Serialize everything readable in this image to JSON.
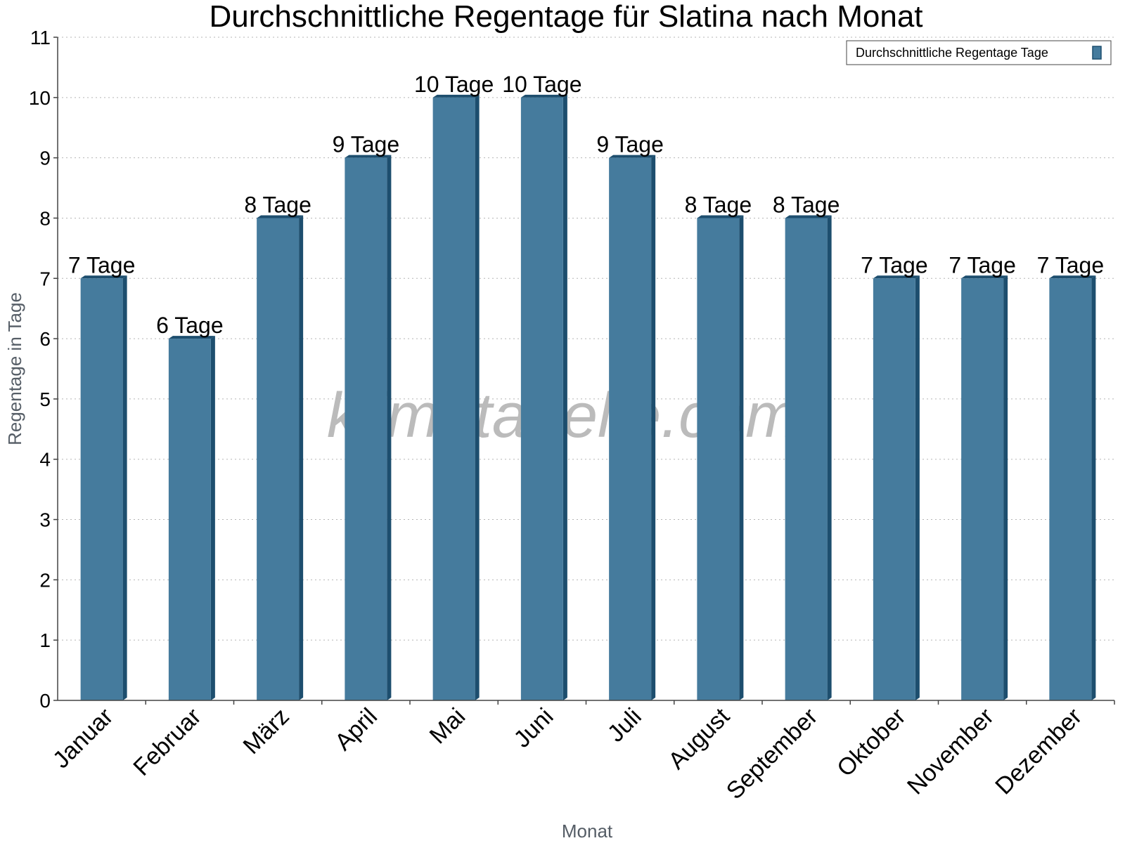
{
  "chart_data": {
    "type": "bar",
    "title": "Durchschnittliche Regentage für Slatina nach Monat",
    "xlabel": "Monat",
    "ylabel": "Regentage in Tage",
    "ylim": [
      0,
      11
    ],
    "yticks": [
      0,
      1,
      2,
      3,
      4,
      5,
      6,
      7,
      8,
      9,
      10,
      11
    ],
    "grid": true,
    "legend_position": "top-right",
    "categories": [
      "Januar",
      "Februar",
      "März",
      "April",
      "Mai",
      "Juni",
      "Juli",
      "August",
      "September",
      "Oktober",
      "November",
      "Dezember"
    ],
    "series": [
      {
        "name": "Durchschnittliche Regentage Tage",
        "values": [
          7,
          6,
          8,
          9,
          10,
          10,
          9,
          8,
          8,
          7,
          7,
          7
        ],
        "data_labels": [
          "7 Tage",
          "6 Tage",
          "8 Tage",
          "9 Tage",
          "10 Tage",
          "10 Tage",
          "9 Tage",
          "8 Tage",
          "8 Tage",
          "7 Tage",
          "7 Tage",
          "7 Tage"
        ],
        "color": "#457b9d",
        "side_color": "#1d4e6e"
      }
    ],
    "watermark": "klimatabelle.com"
  }
}
